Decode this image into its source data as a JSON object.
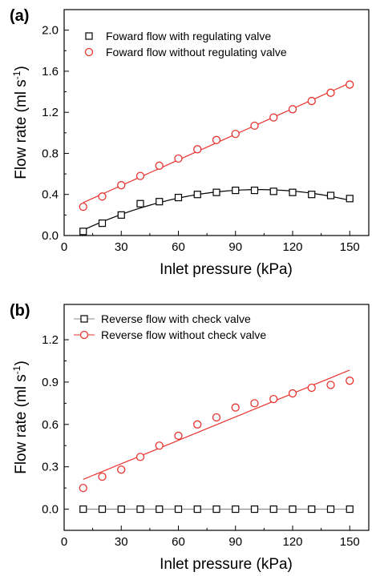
{
  "chart_data": [
    {
      "type": "scatter",
      "panel_label": "(a)",
      "xlabel": "Inlet pressure (kPa)",
      "ylabel_main": "Flow rate (ml s",
      "ylabel_sup": "-1",
      "ylabel_tail": ")",
      "xlim": [
        0,
        160
      ],
      "ylim": [
        0,
        2.2
      ],
      "xticks": [
        0,
        30,
        60,
        90,
        120,
        150
      ],
      "yticks": [
        0.0,
        0.4,
        0.8,
        1.2,
        1.6,
        2.0
      ],
      "ytick_labels": [
        "0.0",
        "0.4",
        "0.8",
        "1.2",
        "1.6",
        "2.0"
      ],
      "legend_position": "top-right",
      "series": [
        {
          "name": "Foward flow with regulating valve",
          "marker": "square",
          "color": "#000000",
          "x": [
            10,
            20,
            30,
            40,
            50,
            60,
            70,
            80,
            90,
            100,
            110,
            120,
            130,
            140,
            150
          ],
          "y": [
            0.04,
            0.12,
            0.2,
            0.31,
            0.33,
            0.37,
            0.4,
            0.42,
            0.44,
            0.44,
            0.43,
            0.42,
            0.4,
            0.39,
            0.36
          ],
          "fit": "polynomial",
          "fit_color": "#000000"
        },
        {
          "name": "Foward flow without regulating valve",
          "marker": "circle",
          "color": "#e8332e",
          "x": [
            10,
            20,
            30,
            40,
            50,
            60,
            70,
            80,
            90,
            100,
            110,
            120,
            130,
            140,
            150
          ],
          "y": [
            0.28,
            0.38,
            0.49,
            0.58,
            0.68,
            0.75,
            0.84,
            0.93,
            0.99,
            1.07,
            1.15,
            1.23,
            1.31,
            1.39,
            1.47
          ],
          "fit": "linear",
          "fit_color": "#e8332e"
        }
      ]
    },
    {
      "type": "scatter",
      "panel_label": "(b)",
      "xlabel": "Inlet pressure (kPa)",
      "ylabel_main": "Flow rate (ml s",
      "ylabel_sup": "-1",
      "ylabel_tail": ")",
      "xlim": [
        0,
        160
      ],
      "ylim": [
        -0.15,
        1.45
      ],
      "xticks": [
        0,
        30,
        60,
        90,
        120,
        150
      ],
      "yticks": [
        0.0,
        0.3,
        0.6,
        0.9,
        1.2
      ],
      "ytick_labels": [
        "0.0",
        "0.3",
        "0.6",
        "0.9",
        "1.2"
      ],
      "legend_position": "top-left",
      "series": [
        {
          "name": "Reverse flow with check valve",
          "marker": "square",
          "color": "#000000",
          "x": [
            10,
            20,
            30,
            40,
            50,
            60,
            70,
            80,
            90,
            100,
            110,
            120,
            130,
            140,
            150
          ],
          "y": [
            0,
            0,
            0,
            0,
            0,
            0,
            0,
            0,
            0,
            0,
            0,
            0,
            0,
            0,
            0
          ],
          "fit": "linear",
          "fit_color": "#888888"
        },
        {
          "name": "Reverse flow without check valve",
          "marker": "circle",
          "color": "#e8332e",
          "x": [
            10,
            20,
            30,
            40,
            50,
            60,
            70,
            80,
            90,
            100,
            110,
            120,
            130,
            140,
            150
          ],
          "y": [
            0.15,
            0.23,
            0.28,
            0.37,
            0.45,
            0.52,
            0.6,
            0.65,
            0.72,
            0.75,
            0.78,
            0.82,
            0.86,
            0.88,
            0.91
          ],
          "fit": "linear",
          "fit_color": "#e8332e"
        }
      ]
    }
  ]
}
